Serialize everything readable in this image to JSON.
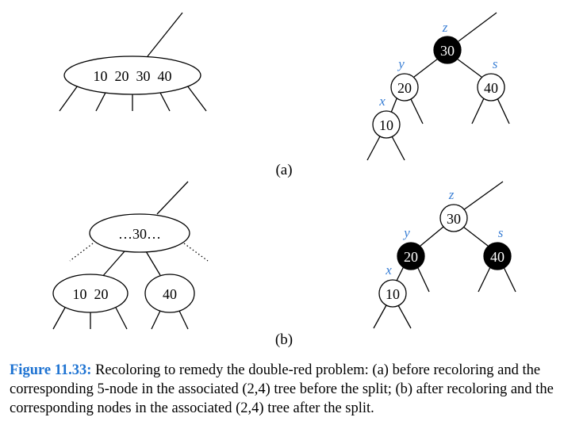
{
  "figure": {
    "label": "Figure 11.33:",
    "caption": "Recoloring to remedy the double-red problem: (a) before recoloring and the corresponding 5-node in the associated (2,4) tree before the split; (b) after recoloring and the corresponding nodes in the associated (2,4) tree after the split."
  },
  "colors": {
    "label_color": "#3a7fd5",
    "black_node": "#000000",
    "white_node": "#ffffff"
  },
  "panel_a": {
    "tag": "(a)",
    "tree24_node": "10  20  30  40",
    "rb_nodes": [
      {
        "key": "30",
        "label": "z",
        "color": "black"
      },
      {
        "key": "20",
        "label": "y",
        "color": "white"
      },
      {
        "key": "40",
        "label": "s",
        "color": "white"
      },
      {
        "key": "10",
        "label": "x",
        "color": "white"
      }
    ]
  },
  "panel_b": {
    "tag": "(b)",
    "tree24_top_node": "…30…",
    "tree24_left_node": "10  20",
    "tree24_right_node": "40",
    "rb_nodes": [
      {
        "key": "30",
        "label": "z",
        "color": "white"
      },
      {
        "key": "20",
        "label": "y",
        "color": "black"
      },
      {
        "key": "40",
        "label": "s",
        "color": "black"
      },
      {
        "key": "10",
        "label": "x",
        "color": "white"
      }
    ]
  }
}
